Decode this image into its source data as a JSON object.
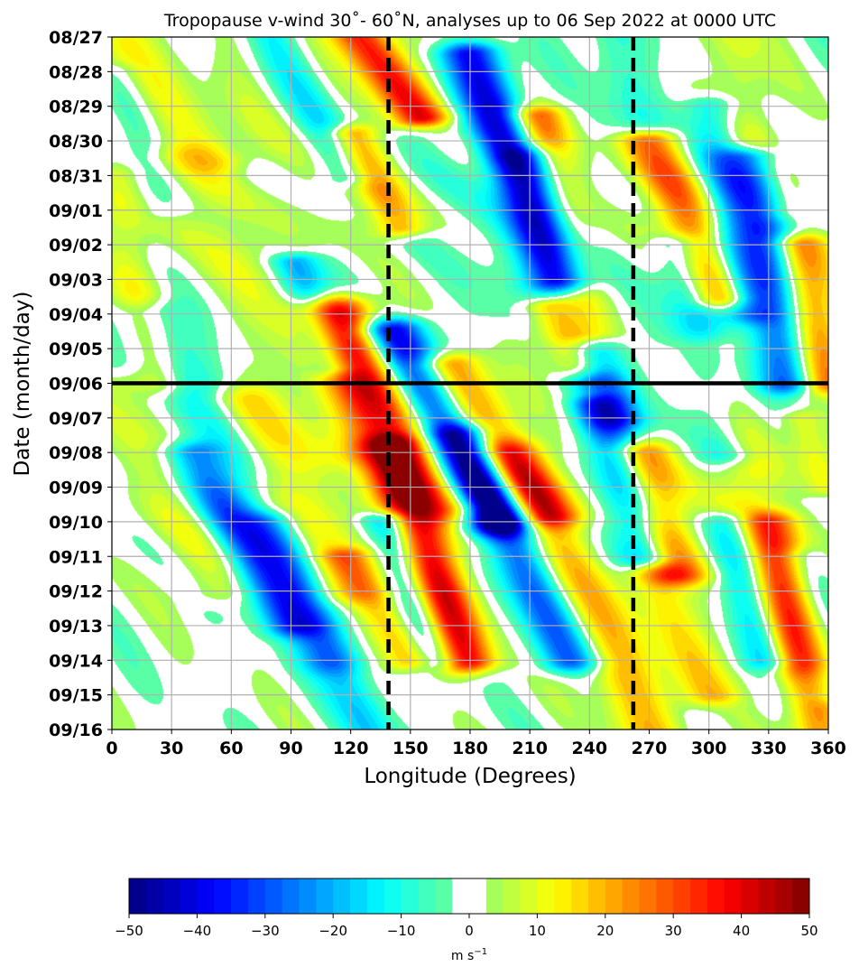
{
  "chart_data": {
    "type": "heatmap",
    "title": "Tropopause v-wind 30˚- 60˚N, analyses up to 06 Sep 2022 at 0000 UTC",
    "xlabel": "Longitude (Degrees)",
    "ylabel": "Date (month/day)",
    "xlim": [
      0,
      360
    ],
    "x_ticks": [
      "0",
      "30",
      "60",
      "90",
      "120",
      "150",
      "180",
      "210",
      "240",
      "270",
      "300",
      "330",
      "360"
    ],
    "y_ticks": [
      "08/27",
      "08/28",
      "08/29",
      "08/30",
      "08/31",
      "09/01",
      "09/02",
      "09/03",
      "09/04",
      "09/05",
      "09/06",
      "09/07",
      "09/08",
      "09/09",
      "09/10",
      "09/11",
      "09/12",
      "09/13",
      "09/14",
      "09/15",
      "09/16"
    ],
    "grid": true,
    "analysis_date_line": "09/06",
    "dashed_longitudes": [
      139,
      262
    ],
    "colorbar": {
      "label_base": "m s",
      "label_exp": "−1",
      "range": [
        -50,
        50
      ],
      "levels": [
        -50,
        -47.5,
        -45,
        -42.5,
        -40,
        -37.5,
        -35,
        -32.5,
        -30,
        -27.5,
        -25,
        -22.5,
        -20,
        -17.5,
        -15,
        -12.5,
        -10,
        -7.5,
        -5,
        -2.5,
        2.5,
        5,
        7.5,
        10,
        12.5,
        15,
        17.5,
        20,
        22.5,
        25,
        27.5,
        30,
        32.5,
        35,
        37.5,
        40,
        42.5,
        45,
        47.5,
        50
      ],
      "tick_labels": [
        "−50",
        "−40",
        "−30",
        "−20",
        "−10",
        "0",
        "10",
        "20",
        "30",
        "40",
        "50"
      ],
      "tick_values": [
        -50,
        -40,
        -30,
        -20,
        -10,
        0,
        10,
        20,
        30,
        40,
        50
      ]
    },
    "features": [
      {
        "type": "ridge",
        "lon0": 0,
        "day0": 0.2,
        "lon1": 55,
        "day1": 3.5,
        "v": 12,
        "w": 13
      },
      {
        "type": "ridge",
        "lon0": 35,
        "day0": 3.5,
        "lon1": 120,
        "day1": 12,
        "v": 10,
        "w": 12
      },
      {
        "type": "ridge",
        "lon0": 65,
        "day0": 10.5,
        "lon1": 118,
        "day1": 16,
        "v": 15,
        "w": 13
      },
      {
        "type": "ridge",
        "lon0": 5,
        "day0": 10,
        "lon1": 50,
        "day1": 16,
        "v": 8,
        "w": 12
      },
      {
        "type": "ridge",
        "lon0": 112,
        "day0": 8,
        "lon1": 172,
        "day1": 18,
        "v": 22,
        "w": 12
      },
      {
        "type": "ridge",
        "lon0": 125,
        "day0": 0,
        "lon1": 155,
        "day1": 2.3,
        "v": 40,
        "w": 10
      },
      {
        "type": "ridge",
        "lon0": 120,
        "day0": 2.8,
        "lon1": 145,
        "day1": 5.5,
        "v": 24,
        "w": 9
      },
      {
        "type": "ridge",
        "lon0": 112,
        "day0": 7.8,
        "lon1": 175,
        "day1": 13.5,
        "v": 28,
        "w": 13
      },
      {
        "type": "ridge",
        "lon0": 140,
        "day0": 11.8,
        "lon1": 178,
        "day1": 18,
        "v": 30,
        "w": 10
      },
      {
        "type": "ridge",
        "lon0": 118,
        "day0": 15,
        "lon1": 150,
        "day1": 18,
        "v": 22,
        "w": 9
      },
      {
        "type": "ridge",
        "lon0": 168,
        "day0": 9.5,
        "lon1": 218,
        "day1": 13.8,
        "v": 32,
        "w": 12
      },
      {
        "type": "ridge",
        "lon0": 213,
        "day0": 2.3,
        "lon1": 240,
        "day1": 8.5,
        "v": 28,
        "w": 10
      },
      {
        "type": "ridge",
        "lon0": 220,
        "day0": 7.8,
        "lon1": 240,
        "day1": 10.2,
        "v": 22,
        "w": 9
      },
      {
        "type": "ridge",
        "lon0": 200,
        "day0": 12,
        "lon1": 270,
        "day1": 20,
        "v": 20,
        "w": 12
      },
      {
        "type": "ridge",
        "lon0": 262,
        "day0": 3,
        "lon1": 290,
        "day1": 6,
        "v": 10,
        "w": 10
      },
      {
        "type": "ridge",
        "lon0": 265,
        "day0": 12,
        "lon1": 285,
        "day1": 15.5,
        "v": 28,
        "w": 11
      },
      {
        "type": "ridge",
        "lon0": 270,
        "day0": 15.5,
        "lon1": 300,
        "day1": 19,
        "v": 18,
        "w": 10
      },
      {
        "type": "ridge",
        "lon0": 272,
        "day0": 3,
        "lon1": 305,
        "day1": 7.5,
        "v": 30,
        "w": 10
      },
      {
        "type": "ridge",
        "lon0": 300,
        "day0": 9,
        "lon1": 345,
        "day1": 18,
        "v": 14,
        "w": 12
      },
      {
        "type": "ridge",
        "lon0": 330,
        "day0": 14,
        "lon1": 355,
        "day1": 20,
        "v": 25,
        "w": 10
      },
      {
        "type": "ridge",
        "lon0": 345,
        "day0": 6,
        "lon1": 360,
        "day1": 10,
        "v": 28,
        "w": 10
      },
      {
        "type": "ridge",
        "lon0": 345,
        "day0": 11,
        "lon1": 360,
        "day1": 13,
        "v": 12,
        "w": 8
      },
      {
        "type": "ridge",
        "lon0": 310,
        "day0": 0,
        "lon1": 335,
        "day1": 5,
        "v": 10,
        "w": 10
      },
      {
        "type": "ridge",
        "lon0": 60,
        "day0": 0,
        "lon1": 100,
        "day1": 6,
        "v": 4,
        "w": 12
      },
      {
        "type": "ridge",
        "lon0": 0,
        "day0": 4,
        "lon1": 25,
        "day1": 10,
        "v": 10,
        "w": 10
      },
      {
        "type": "ridge",
        "lon0": 150,
        "day0": 3,
        "lon1": 200,
        "day1": 8,
        "v": -4,
        "w": 14
      },
      {
        "type": "ridge",
        "lon0": 80,
        "day0": 0,
        "lon1": 120,
        "day1": 4,
        "v": -12,
        "w": 9
      },
      {
        "type": "ridge",
        "lon0": 92,
        "day0": 6.5,
        "lon1": 112,
        "day1": 9.5,
        "v": -22,
        "w": 9
      },
      {
        "type": "ridge",
        "lon0": 20,
        "day0": 8,
        "lon1": 110,
        "day1": 18,
        "v": -14,
        "w": 12
      },
      {
        "type": "ridge",
        "lon0": 40,
        "day0": 12,
        "lon1": 90,
        "day1": 17,
        "v": -22,
        "w": 10
      },
      {
        "type": "ridge",
        "lon0": 80,
        "day0": 14,
        "lon1": 130,
        "day1": 20,
        "v": -16,
        "w": 10
      },
      {
        "type": "ridge",
        "lon0": 180,
        "day0": 0.5,
        "lon1": 225,
        "day1": 7,
        "v": -40,
        "w": 11
      },
      {
        "type": "ridge",
        "lon0": 140,
        "day0": 8.5,
        "lon1": 195,
        "day1": 14,
        "v": -46,
        "w": 12
      },
      {
        "type": "ridge",
        "lon0": 138,
        "day0": 14,
        "lon1": 165,
        "day1": 18,
        "v": -32,
        "w": 9
      },
      {
        "type": "ridge",
        "lon0": 175,
        "day0": 11.5,
        "lon1": 230,
        "day1": 18,
        "v": -30,
        "w": 11
      },
      {
        "type": "ridge",
        "lon0": 210,
        "day0": 3.5,
        "lon1": 255,
        "day1": 11,
        "v": -22,
        "w": 11
      },
      {
        "type": "ridge",
        "lon0": 250,
        "day0": 0,
        "lon1": 290,
        "day1": 6,
        "v": -10,
        "w": 10
      },
      {
        "type": "ridge",
        "lon0": 240,
        "day0": 10,
        "lon1": 270,
        "day1": 15,
        "v": -26,
        "w": 10
      },
      {
        "type": "ridge",
        "lon0": 285,
        "day0": 6,
        "lon1": 310,
        "day1": 12,
        "v": -18,
        "w": 10
      },
      {
        "type": "ridge",
        "lon0": 310,
        "day0": 14,
        "lon1": 330,
        "day1": 18,
        "v": -20,
        "w": 9
      },
      {
        "type": "ridge",
        "lon0": 320,
        "day0": 3.5,
        "lon1": 340,
        "day1": 10,
        "v": -32,
        "w": 10
      },
      {
        "type": "ridge",
        "lon0": 300,
        "day0": 2,
        "lon1": 320,
        "day1": 8,
        "v": -16,
        "w": 9
      },
      {
        "type": "ridge",
        "lon0": 345,
        "day0": 15,
        "lon1": 360,
        "day1": 19,
        "v": -10,
        "w": 8
      },
      {
        "type": "ridge",
        "lon0": 5,
        "day0": 1,
        "lon1": 25,
        "day1": 5,
        "v": -6,
        "w": 8
      }
    ]
  }
}
